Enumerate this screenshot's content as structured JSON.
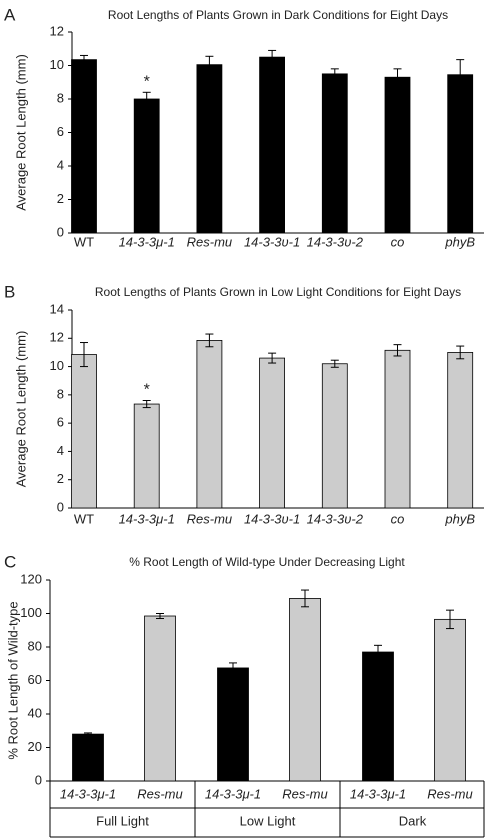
{
  "chart_data": [
    {
      "type": "bar",
      "label": "A",
      "title": "Root Lengths of Plants Grown in Dark Conditions for Eight Days",
      "ylabel": "Average Root Length (mm)",
      "categories": [
        "WT",
        "14-3-3μ-1",
        "Res-mu",
        "14-3-3υ-1",
        "14-3-3υ-2",
        "co",
        "phyB"
      ],
      "values": [
        10.35,
        8.0,
        10.05,
        10.5,
        9.5,
        9.3,
        9.45
      ],
      "errors": [
        0.25,
        0.4,
        0.5,
        0.4,
        0.3,
        0.5,
        0.9
      ],
      "color": "#000000",
      "annotations": [
        {
          "text": "*",
          "x": "14-3-3μ-1"
        }
      ],
      "ylim": [
        0,
        12
      ],
      "yticks": [
        0,
        2,
        4,
        6,
        8,
        10,
        12
      ]
    },
    {
      "type": "bar",
      "label": "B",
      "title": "Root Lengths of Plants Grown in Low Light Conditions for Eight Days",
      "ylabel": "Average Root Length (mm)",
      "categories": [
        "WT",
        "14-3-3μ-1",
        "Res-mu",
        "14-3-3υ-1",
        "14-3-3υ-2",
        "co",
        "phyB"
      ],
      "values": [
        10.85,
        7.35,
        11.85,
        10.6,
        10.2,
        11.15,
        11.0
      ],
      "errors": [
        0.85,
        0.25,
        0.45,
        0.35,
        0.25,
        0.4,
        0.45
      ],
      "color": "#cccccc",
      "annotations": [
        {
          "text": "*",
          "x": "14-3-3μ-1"
        }
      ],
      "ylim": [
        0,
        14
      ],
      "yticks": [
        0,
        2,
        4,
        6,
        8,
        10,
        12,
        14
      ]
    },
    {
      "type": "bar",
      "label": "C",
      "title": "% Root Length of Wild-type Under Decreasing Light",
      "ylabel": "% Root Length of Wild-type",
      "categories": [
        "Full Light",
        "Low Light",
        "Dark"
      ],
      "series": [
        {
          "name": "14-3-3μ-1",
          "color": "#000000",
          "values": [
            28,
            67.5,
            77
          ],
          "errors": [
            0.7,
            3,
            4
          ]
        },
        {
          "name": "Res-mu",
          "color": "#cccccc",
          "values": [
            98.5,
            109,
            96.5
          ],
          "errors": [
            1.5,
            5,
            5.5
          ]
        }
      ],
      "ylim": [
        0,
        120
      ],
      "yticks": [
        0,
        20,
        40,
        60,
        80,
        100,
        120
      ]
    }
  ]
}
